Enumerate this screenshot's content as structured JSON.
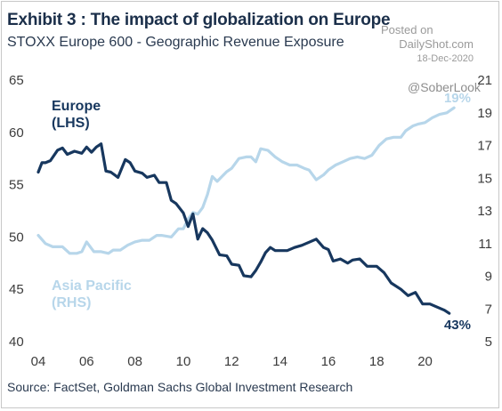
{
  "header": {
    "title": "Exhibit 3 : The impact of globalization on Europe",
    "subtitle": "STOXX Europe 600 - Geographic Revenue Exposure"
  },
  "watermark": {
    "posted_on": "Posted on",
    "site": "DailyShot.com",
    "date": "18-Dec-2020",
    "handle": "@SoberLook"
  },
  "footer": {
    "source": "Source: FactSet, Goldman Sachs Global Investment Research"
  },
  "colors": {
    "europe": "#17375e",
    "asia_pacific": "#b7d6ea",
    "text": "#3c3c3c"
  },
  "chart_data": {
    "type": "line",
    "x_tick_labels": [
      "04",
      "06",
      "08",
      "10",
      "12",
      "14",
      "16",
      "18",
      "20"
    ],
    "xlim": [
      2004,
      2021.6
    ],
    "y_left": {
      "lim": [
        40,
        65
      ],
      "ticks": [
        40,
        45,
        50,
        55,
        60,
        65
      ]
    },
    "y_right": {
      "lim": [
        5,
        21
      ],
      "ticks": [
        5,
        7,
        9,
        11,
        13,
        15,
        17,
        19,
        21
      ]
    },
    "grid": false,
    "series": [
      {
        "name": "Europe (LHS)",
        "label_lines": [
          "Europe",
          "(LHS)"
        ],
        "axis": "left",
        "end_label": "43%",
        "x": [
          2004.0,
          2004.15,
          2004.3,
          2004.5,
          2004.8,
          2005.0,
          2005.2,
          2005.5,
          2005.8,
          2006.0,
          2006.2,
          2006.4,
          2006.6,
          2006.8,
          2007.0,
          2007.3,
          2007.6,
          2007.8,
          2008.0,
          2008.3,
          2008.5,
          2008.8,
          2009.0,
          2009.3,
          2009.5,
          2009.7,
          2010.0,
          2010.2,
          2010.4,
          2010.6,
          2010.8,
          2011.0,
          2011.2,
          2011.5,
          2011.8,
          2012.0,
          2012.3,
          2012.5,
          2012.8,
          2013.0,
          2013.2,
          2013.4,
          2013.6,
          2013.8,
          2014.0,
          2014.3,
          2014.6,
          2014.9,
          2015.2,
          2015.5,
          2015.8,
          2016.0,
          2016.2,
          2016.5,
          2016.8,
          2017.0,
          2017.3,
          2017.6,
          2018.0,
          2018.3,
          2018.6,
          2019.0,
          2019.3,
          2019.6,
          2019.9,
          2020.2,
          2020.5,
          2020.8,
          2021.0
        ],
        "values": [
          56.2,
          57.1,
          57.1,
          57.3,
          58.3,
          58.5,
          57.9,
          58.2,
          58.0,
          58.6,
          58.1,
          58.6,
          58.9,
          56.3,
          56.2,
          55.7,
          57.4,
          57.1,
          56.3,
          56.1,
          55.7,
          55.9,
          55.2,
          55.2,
          53.5,
          53.2,
          52.3,
          51.0,
          52.2,
          49.8,
          50.8,
          50.4,
          49.7,
          48.3,
          48.2,
          47.4,
          47.3,
          46.3,
          46.2,
          46.8,
          47.6,
          48.5,
          49.0,
          48.7,
          48.7,
          48.7,
          49.0,
          49.2,
          49.5,
          49.8,
          49.0,
          48.8,
          47.7,
          47.9,
          47.5,
          47.8,
          47.9,
          47.2,
          47.2,
          46.6,
          45.6,
          45.0,
          44.4,
          44.7,
          43.6,
          43.6,
          43.3,
          43.0,
          42.7
        ]
      },
      {
        "name": "Asia Pacific (RHS)",
        "label_lines": [
          "Asia Pacific",
          "(RHS)"
        ],
        "axis": "right",
        "end_label": "19%",
        "x": [
          2004.0,
          2004.3,
          2004.6,
          2005.0,
          2005.3,
          2005.6,
          2005.8,
          2006.0,
          2006.3,
          2006.6,
          2006.9,
          2007.1,
          2007.4,
          2007.7,
          2008.0,
          2008.3,
          2008.6,
          2008.9,
          2009.1,
          2009.5,
          2009.8,
          2010.0,
          2010.2,
          2010.4,
          2010.6,
          2010.8,
          2011.0,
          2011.2,
          2011.4,
          2011.6,
          2011.8,
          2012.0,
          2012.3,
          2012.6,
          2012.8,
          2013.0,
          2013.2,
          2013.5,
          2013.8,
          2014.1,
          2014.4,
          2014.7,
          2015.0,
          2015.2,
          2015.5,
          2015.8,
          2016.0,
          2016.3,
          2016.6,
          2016.9,
          2017.2,
          2017.5,
          2017.8,
          2018.1,
          2018.4,
          2018.7,
          2019.0,
          2019.2,
          2019.5,
          2019.7,
          2020.0,
          2020.3,
          2020.6,
          2020.9,
          2021.2
        ],
        "values": [
          11.5,
          11.0,
          10.8,
          10.8,
          10.4,
          10.4,
          10.5,
          11.1,
          10.5,
          10.5,
          10.4,
          10.6,
          10.6,
          10.9,
          11.1,
          11.2,
          11.2,
          11.5,
          11.5,
          11.4,
          11.9,
          11.9,
          12.5,
          12.9,
          12.8,
          13.2,
          14.0,
          15.1,
          14.8,
          15.1,
          15.4,
          15.6,
          16.2,
          16.3,
          16.3,
          16.0,
          16.8,
          16.7,
          16.3,
          16.0,
          15.8,
          15.8,
          15.6,
          15.5,
          14.9,
          15.2,
          15.5,
          15.8,
          16.0,
          16.2,
          16.3,
          16.2,
          16.4,
          17.0,
          17.4,
          17.5,
          17.5,
          17.9,
          18.2,
          18.3,
          18.4,
          18.7,
          18.9,
          19.0,
          19.3
        ]
      }
    ]
  }
}
